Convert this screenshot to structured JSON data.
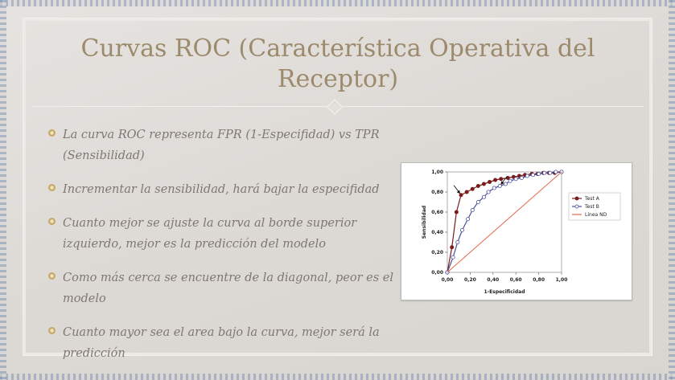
{
  "title": "Curvas ROC (Característica Operativa del Receptor)",
  "bullets": [
    "La curva ROC representa FPR (1-Especifidad) vs TPR (Sensibilidad)",
    "Incrementar la sensibilidad, hará bajar la especifidad",
    "Cuanto mejor se ajuste la curva al borde superior izquierdo, mejor es la predicción del modelo",
    "Como más cerca se encuentre de la diagonal, peor es el modelo",
    "Cuanto mayor sea el area bajo la curva, mejor será la predicción"
  ],
  "colors": {
    "title": "#9c8a6c",
    "text": "#7e7874",
    "testA": "#7b1c1c",
    "testB": "#4a4f9a",
    "nd": "#e26b4a"
  },
  "chart_data": {
    "type": "line",
    "xlabel": "1-Especificidad",
    "ylabel": "Sensibilidad",
    "xlim": [
      0,
      1
    ],
    "ylim": [
      0,
      1
    ],
    "xticks": [
      "0,00",
      "0,20",
      "0,40",
      "0,60",
      "0,80",
      "1,00"
    ],
    "yticks": [
      "0,00",
      "0,20",
      "0,40",
      "0,60",
      "0,80",
      "1,00"
    ],
    "legend_position": "right",
    "series": [
      {
        "name": "Test A",
        "marker": "filled-circle",
        "x": [
          0.0,
          0.04,
          0.08,
          0.12,
          0.17,
          0.22,
          0.27,
          0.32,
          0.37,
          0.42,
          0.47,
          0.53,
          0.58,
          0.63,
          0.68,
          0.74,
          0.79,
          0.84,
          0.89,
          0.94,
          1.0
        ],
        "y": [
          0.0,
          0.25,
          0.6,
          0.77,
          0.8,
          0.83,
          0.86,
          0.88,
          0.9,
          0.92,
          0.93,
          0.94,
          0.95,
          0.96,
          0.97,
          0.98,
          0.98,
          0.99,
          0.99,
          0.99,
          1.0
        ]
      },
      {
        "name": "Test B",
        "marker": "open-circle",
        "x": [
          0.0,
          0.05,
          0.09,
          0.13,
          0.18,
          0.22,
          0.27,
          0.32,
          0.36,
          0.41,
          0.46,
          0.51,
          0.55,
          0.6,
          0.65,
          0.7,
          0.75,
          0.8,
          0.85,
          0.9,
          0.95,
          1.0
        ],
        "y": [
          0.0,
          0.15,
          0.3,
          0.42,
          0.53,
          0.62,
          0.7,
          0.75,
          0.8,
          0.84,
          0.86,
          0.88,
          0.91,
          0.93,
          0.94,
          0.96,
          0.97,
          0.98,
          0.99,
          0.99,
          1.0,
          1.0
        ]
      },
      {
        "name": "Línea ND",
        "marker": "none",
        "x": [
          0,
          1
        ],
        "y": [
          0,
          1
        ]
      }
    ],
    "annotations": [
      {
        "type": "arrow",
        "target_series": "Test A",
        "x": 0.12,
        "y": 0.77
      },
      {
        "type": "arrow",
        "target_series": "Test B",
        "x": 0.46,
        "y": 0.86
      }
    ]
  }
}
